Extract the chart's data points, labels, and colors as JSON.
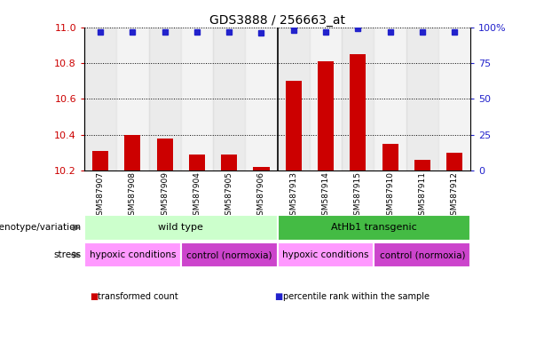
{
  "title": "GDS3888 / 256663_at",
  "samples": [
    "GSM587907",
    "GSM587908",
    "GSM587909",
    "GSM587904",
    "GSM587905",
    "GSM587906",
    "GSM587913",
    "GSM587914",
    "GSM587915",
    "GSM587910",
    "GSM587911",
    "GSM587912"
  ],
  "bar_values": [
    10.31,
    10.4,
    10.38,
    10.29,
    10.29,
    10.22,
    10.7,
    10.81,
    10.85,
    10.35,
    10.26,
    10.3
  ],
  "percentile_values": [
    97,
    97,
    97,
    97,
    97,
    96,
    98,
    97,
    99,
    97,
    97,
    97
  ],
  "ylim_left": [
    10.2,
    11.0
  ],
  "ylim_right": [
    0,
    100
  ],
  "yticks_left": [
    10.2,
    10.4,
    10.6,
    10.8,
    11.0
  ],
  "yticks_right": [
    0,
    25,
    50,
    75,
    100
  ],
  "bar_color": "#cc0000",
  "percentile_color": "#2222cc",
  "genotype_groups": [
    {
      "label": "wild type",
      "start": 0,
      "end": 6,
      "color": "#ccffcc"
    },
    {
      "label": "AtHb1 transgenic",
      "start": 6,
      "end": 12,
      "color": "#44bb44"
    }
  ],
  "stress_groups": [
    {
      "label": "hypoxic conditions",
      "start": 0,
      "end": 3,
      "color": "#ff99ff"
    },
    {
      "label": "control (normoxia)",
      "start": 3,
      "end": 6,
      "color": "#cc44cc"
    },
    {
      "label": "hypoxic conditions",
      "start": 6,
      "end": 9,
      "color": "#ff99ff"
    },
    {
      "label": "control (normoxia)",
      "start": 9,
      "end": 12,
      "color": "#cc44cc"
    }
  ],
  "legend_items": [
    {
      "label": "transformed count",
      "color": "#cc0000"
    },
    {
      "label": "percentile rank within the sample",
      "color": "#2222cc"
    }
  ]
}
